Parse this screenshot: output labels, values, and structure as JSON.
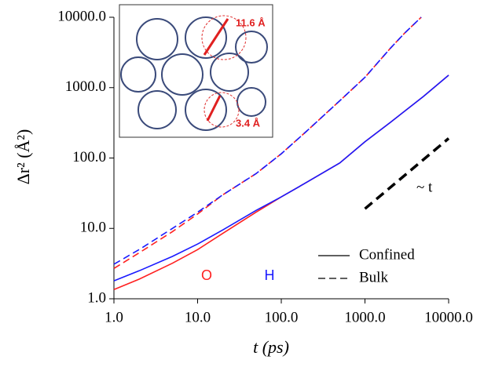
{
  "chart_data": {
    "type": "line",
    "xlabel": "t (ps)",
    "ylabel": "Δr² (Å²)",
    "xscale": "log",
    "yscale": "log",
    "xlim": [
      1,
      10000
    ],
    "ylim": [
      1,
      10000
    ],
    "xticks": [
      {
        "value": 1,
        "label": "1.0"
      },
      {
        "value": 10,
        "label": "10.0"
      },
      {
        "value": 100,
        "label": "100.0"
      },
      {
        "value": 1000,
        "label": "1000.0"
      },
      {
        "value": 10000,
        "label": "10000.0"
      }
    ],
    "yticks": [
      {
        "value": 1,
        "label": "1.0"
      },
      {
        "value": 10,
        "label": "10.0"
      },
      {
        "value": 100,
        "label": "100.0"
      },
      {
        "value": 1000,
        "label": "1000.0"
      },
      {
        "value": 10000,
        "label": "10000.0"
      }
    ],
    "color_labels": [
      {
        "name": "O",
        "color": "#ff2020"
      },
      {
        "name": "H",
        "color": "#1a1aff"
      }
    ],
    "dash_labels": [
      {
        "name": "Confined",
        "dash": "none"
      },
      {
        "name": "Bulk",
        "dash": "9 5"
      }
    ],
    "series": [
      {
        "color": "#ff2020",
        "dash": "none",
        "x": [
          1,
          2,
          5,
          10,
          20,
          50,
          100,
          200,
          500,
          1000,
          2000,
          5000,
          10000
        ],
        "values": [
          1.35,
          1.9,
          3.2,
          5,
          8.5,
          17,
          28,
          45,
          85,
          170,
          320,
          750,
          1500
        ]
      },
      {
        "color": "#1a1aff",
        "dash": "none",
        "x": [
          1,
          2,
          5,
          10,
          20,
          50,
          100,
          200,
          500,
          1000,
          2000,
          5000,
          10000
        ],
        "values": [
          1.8,
          2.5,
          4,
          6,
          9.5,
          18,
          28,
          45,
          85,
          170,
          320,
          750,
          1500
        ]
      },
      {
        "color": "#ff2020",
        "dash": "9 5",
        "x": [
          1,
          2,
          5,
          10,
          20,
          50,
          100,
          200,
          500,
          1000,
          2000,
          3000,
          4700
        ],
        "values": [
          2.7,
          4.5,
          9,
          16,
          30,
          60,
          115,
          240,
          650,
          1400,
          3600,
          6000,
          10000
        ]
      },
      {
        "color": "#1a1aff",
        "dash": "9 5",
        "x": [
          1,
          2,
          5,
          10,
          20,
          50,
          100,
          200,
          500,
          1000,
          2000,
          3000,
          4700
        ],
        "values": [
          3.1,
          5,
          10,
          17,
          30,
          60,
          115,
          240,
          650,
          1400,
          3600,
          6000,
          10000
        ]
      }
    ],
    "reference": {
      "label": "~ t",
      "color": "#000000",
      "dash": "12 7",
      "x": [
        1000,
        10000
      ],
      "values": [
        19,
        190
      ]
    },
    "inset": {
      "labels": [
        "11.6 Å",
        "3.4 Å"
      ]
    }
  }
}
